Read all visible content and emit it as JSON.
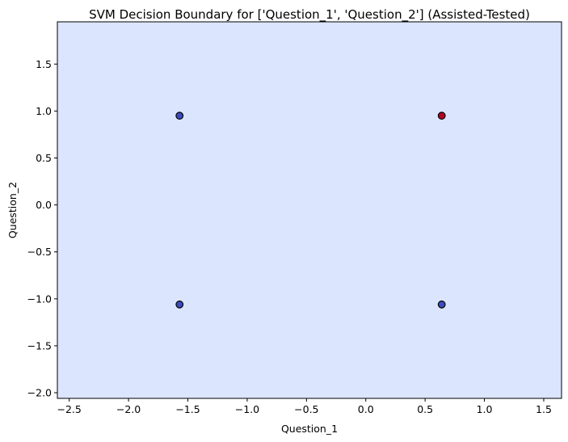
{
  "chart_data": {
    "type": "scatter",
    "title": "SVM Decision Boundary for ['Question_1', 'Question_2'] (Assisted-Tested)",
    "xlabel": "Question_1",
    "ylabel": "Question_2",
    "xlim": [
      -2.6,
      1.65
    ],
    "ylim": [
      -2.06,
      1.95
    ],
    "x_ticks": [
      -2.5,
      -2.0,
      -1.5,
      -1.0,
      -0.5,
      0.0,
      0.5,
      1.0,
      1.5
    ],
    "x_tick_labels": [
      "−2.5",
      "−2.0",
      "−1.5",
      "−1.0",
      "−0.5",
      "0.0",
      "0.5",
      "1.0",
      "1.5"
    ],
    "y_ticks": [
      -2.0,
      -1.5,
      -1.0,
      -0.5,
      0.0,
      0.5,
      1.0,
      1.5
    ],
    "y_tick_labels": [
      "−2.0",
      "−1.5",
      "−1.0",
      "−0.5",
      "0.0",
      "0.5",
      "1.0",
      "1.5"
    ],
    "grid": false,
    "background_region_color": "#dce5fe",
    "points": [
      {
        "x": -1.57,
        "y": 0.95,
        "color": "#3b4cc0"
      },
      {
        "x": 0.64,
        "y": 0.95,
        "color": "#b40426"
      },
      {
        "x": -1.57,
        "y": -1.06,
        "color": "#3b4cc0"
      },
      {
        "x": 0.64,
        "y": -1.06,
        "color": "#3b4cc0"
      }
    ]
  }
}
